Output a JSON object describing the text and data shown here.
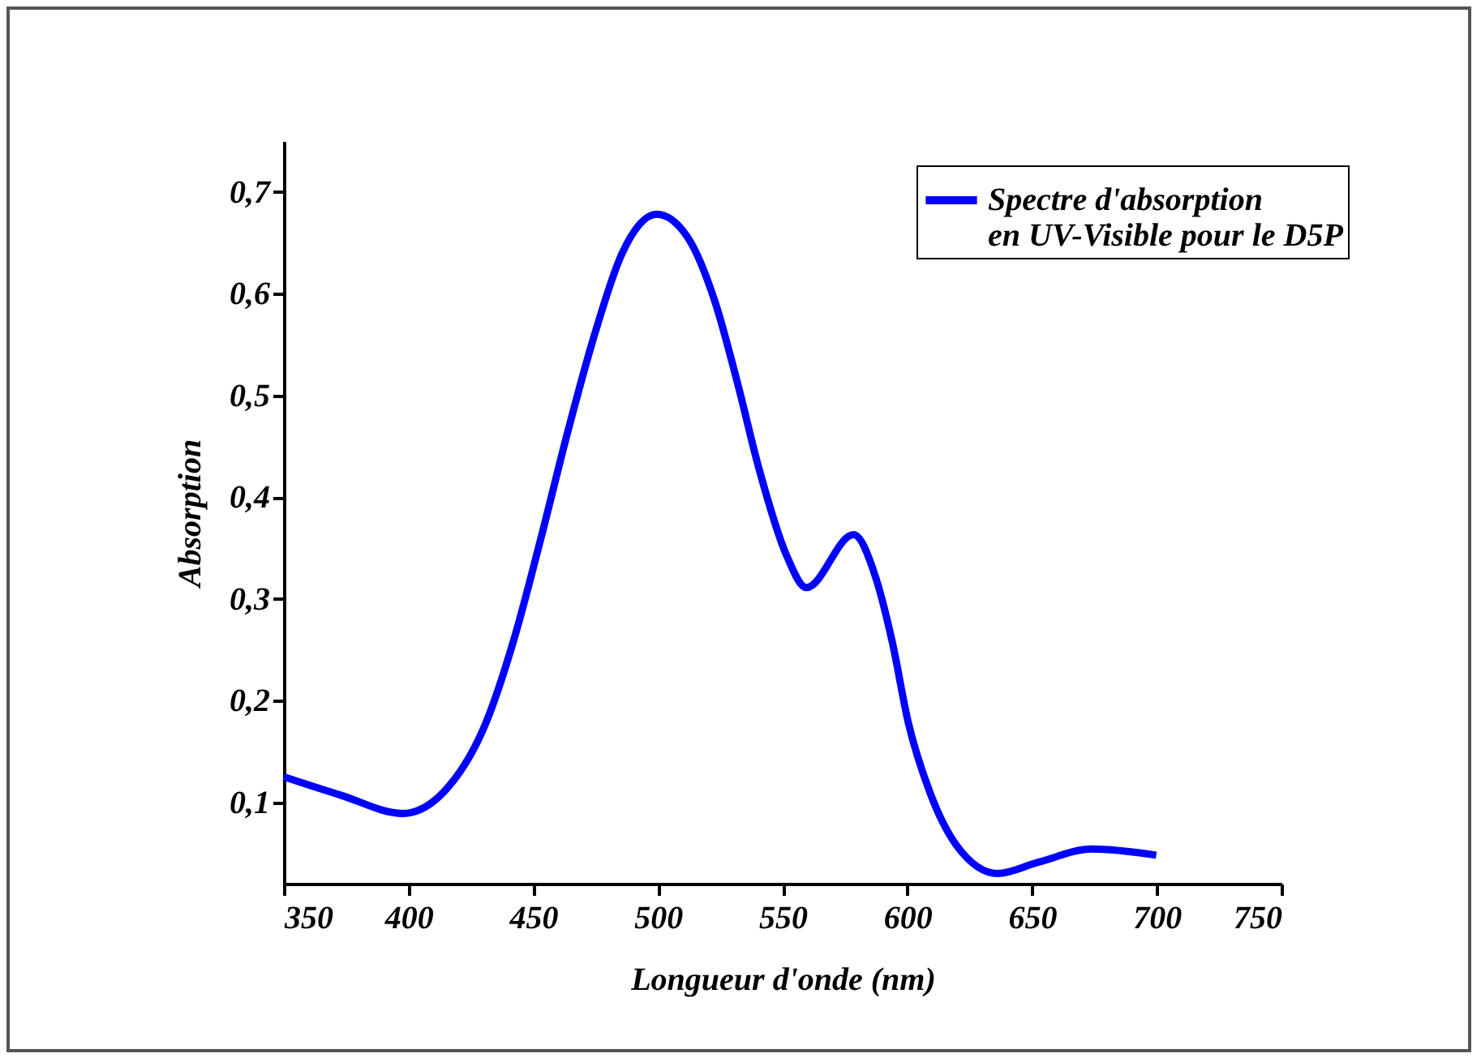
{
  "chart_data": {
    "type": "line",
    "xlabel": "Longueur d'onde (nm)",
    "ylabel": "Absorption",
    "xlim": [
      350,
      750
    ],
    "xticks": [
      350,
      400,
      450,
      500,
      550,
      600,
      650,
      700,
      750
    ],
    "ylim": [
      0.02,
      0.75
    ],
    "yticks": [
      {
        "value": 0.1,
        "label": "0,1"
      },
      {
        "value": 0.2,
        "label": "0,2"
      },
      {
        "value": 0.3,
        "label": "0,3"
      },
      {
        "value": 0.4,
        "label": "0,4"
      },
      {
        "value": 0.5,
        "label": "0,5"
      },
      {
        "value": 0.6,
        "label": "0,6"
      },
      {
        "value": 0.7,
        "label": "0,7"
      }
    ],
    "grid": false,
    "legend": "top right",
    "line_style": "solid",
    "series": [
      {
        "name": "Spectre d'absorption en UV-Visible pour le D5P",
        "color": "#0000ff",
        "x": [
          350,
          372.8,
          397.7,
          415.9,
          431,
          442,
          452.9,
          463.8,
          474.6,
          485.5,
          499.5,
          512,
          523,
          531.9,
          540.6,
          551.5,
          559.5,
          578.4,
          587.3,
          593.9,
          600.4,
          609,
          619.9,
          636.2,
          652.4,
          674.1,
          699.8
        ],
        "values": [
          0.125,
          0.107,
          0.089,
          0.115,
          0.178,
          0.258,
          0.358,
          0.464,
          0.56,
          0.639,
          0.678,
          0.655,
          0.591,
          0.512,
          0.427,
          0.343,
          0.311,
          0.363,
          0.321,
          0.258,
          0.178,
          0.11,
          0.057,
          0.03,
          0.041,
          0.054,
          0.048
        ]
      }
    ]
  }
}
